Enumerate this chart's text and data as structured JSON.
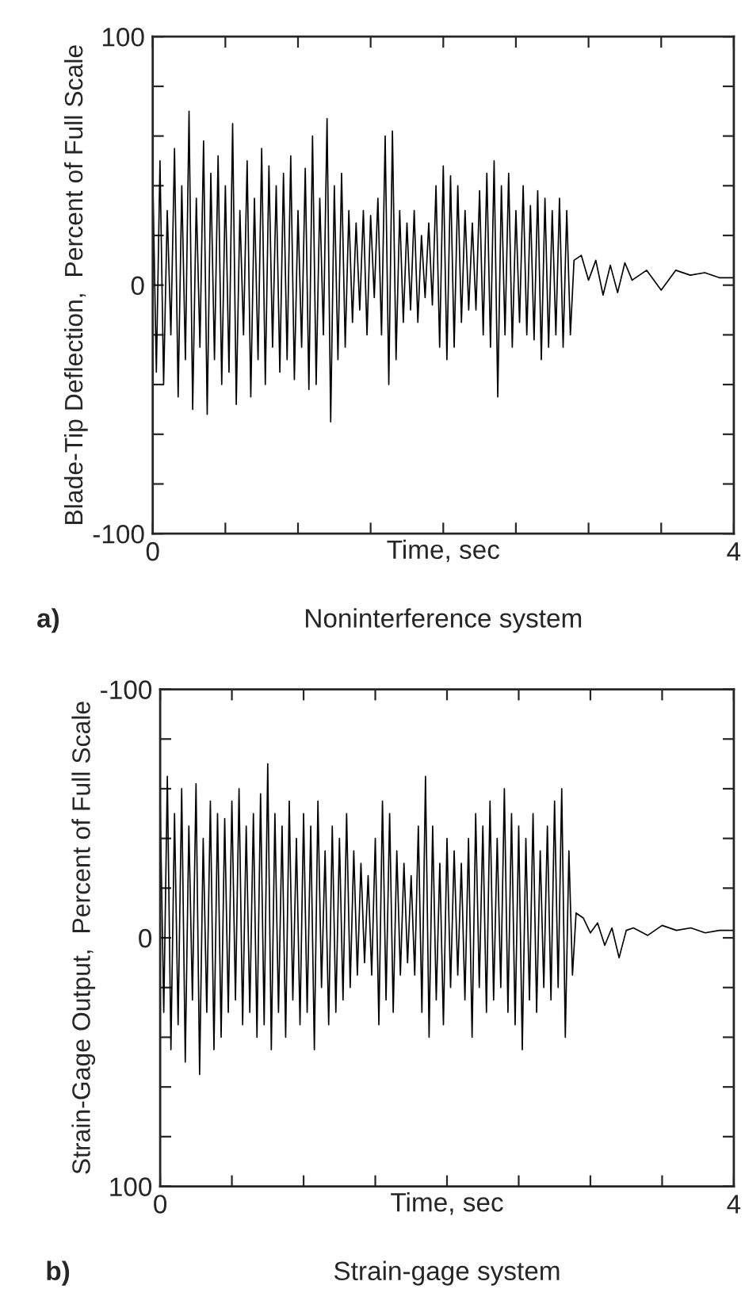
{
  "chart_data": [
    {
      "type": "line",
      "title": "Noninterference system",
      "xlabel": "Time, sec",
      "ylabel": "Blade-Tip Deflection,  Percent of Full Scale",
      "annotations": [
        "a)"
      ],
      "x": [
        0,
        0.025,
        0.05,
        0.075,
        0.1,
        0.125,
        0.15,
        0.175,
        0.2,
        0.225,
        0.25,
        0.275,
        0.3,
        0.325,
        0.35,
        0.375,
        0.4,
        0.425,
        0.45,
        0.475,
        0.5,
        0.525,
        0.55,
        0.575,
        0.6,
        0.625,
        0.65,
        0.675,
        0.7,
        0.725,
        0.75,
        0.775,
        0.8,
        0.825,
        0.85,
        0.875,
        0.9,
        0.925,
        0.95,
        0.975,
        1.0,
        1.025,
        1.05,
        1.075,
        1.1,
        1.125,
        1.15,
        1.175,
        1.2,
        1.225,
        1.25,
        1.275,
        1.3,
        1.325,
        1.35,
        1.375,
        1.4,
        1.425,
        1.45,
        1.475,
        1.5,
        1.525,
        1.55,
        1.575,
        1.6,
        1.625,
        1.65,
        1.675,
        1.7,
        1.725,
        1.75,
        1.775,
        1.8,
        1.825,
        1.85,
        1.875,
        1.9,
        1.925,
        1.95,
        1.975,
        2.0,
        2.025,
        2.05,
        2.075,
        2.1,
        2.125,
        2.15,
        2.175,
        2.2,
        2.225,
        2.25,
        2.275,
        2.3,
        2.325,
        2.35,
        2.375,
        2.4,
        2.425,
        2.45,
        2.475,
        2.5,
        2.525,
        2.55,
        2.575,
        2.6,
        2.625,
        2.65,
        2.675,
        2.7,
        2.725,
        2.75,
        2.775,
        2.8,
        2.825,
        2.85,
        2.875,
        2.9,
        2.95,
        3.0,
        3.05,
        3.1,
        3.15,
        3.2,
        3.25,
        3.3,
        3.4,
        3.5,
        3.6,
        3.7,
        3.8,
        3.9,
        4.0
      ],
      "series": [
        {
          "color": "#000000",
          "values": [
            45,
            -35,
            50,
            -40,
            30,
            -20,
            55,
            -45,
            40,
            -30,
            70,
            -50,
            35,
            -25,
            58,
            -52,
            45,
            -30,
            52,
            -40,
            40,
            -35,
            65,
            -48,
            30,
            -20,
            50,
            -45,
            35,
            -30,
            55,
            -40,
            48,
            -25,
            40,
            -35,
            45,
            -30,
            52,
            -38,
            30,
            -25,
            47,
            -42,
            60,
            -40,
            35,
            -20,
            67,
            -55,
            40,
            -30,
            45,
            -25,
            30,
            -15,
            25,
            -10,
            30,
            -20,
            28,
            -5,
            35,
            -20,
            60,
            -40,
            62,
            -30,
            30,
            -15,
            25,
            -10,
            30,
            -15,
            20,
            -5,
            25,
            -8,
            40,
            -25,
            48,
            -30,
            44,
            -25,
            40,
            -15,
            30,
            -10,
            25,
            -10,
            38,
            -20,
            45,
            -25,
            50,
            -45,
            40,
            -20,
            45,
            -25,
            30,
            -15,
            40,
            -20,
            32,
            -22,
            38,
            -30,
            35,
            -25,
            30,
            -20,
            35,
            -25,
            30,
            -20,
            10,
            12,
            2,
            10,
            -4,
            8,
            -3,
            9,
            2,
            6,
            -2,
            6,
            4,
            5,
            3,
            3
          ]
        }
      ],
      "xlim": [
        0,
        4
      ],
      "xticks": [
        0,
        {
          "value": 0.5,
          "label": null
        },
        {
          "value": 1,
          "label": null
        },
        {
          "value": 1.5,
          "label": null
        },
        {
          "value": 2,
          "label": null
        },
        {
          "value": 2.5,
          "label": null
        },
        {
          "value": 3,
          "label": null
        },
        {
          "value": 3.5,
          "label": null
        },
        4
      ],
      "ylim": [
        -100,
        100
      ],
      "yticks": [
        -100,
        {
          "value": -80,
          "label": null
        },
        {
          "value": -60,
          "label": null
        },
        {
          "value": -40,
          "label": null
        },
        {
          "value": -20,
          "label": null
        },
        0,
        {
          "value": 20,
          "label": null
        },
        {
          "value": 40,
          "label": null
        },
        {
          "value": 60,
          "label": null
        },
        {
          "value": 80,
          "label": null
        },
        100
      ]
    },
    {
      "type": "line",
      "title": "Strain-gage system",
      "xlabel": "Time, sec",
      "ylabel": "Strain-Gage Output,  Percent of Full Scale",
      "annotations": [
        "b)"
      ],
      "x": [
        0,
        0.025,
        0.05,
        0.075,
        0.1,
        0.125,
        0.15,
        0.175,
        0.2,
        0.225,
        0.25,
        0.275,
        0.3,
        0.325,
        0.35,
        0.375,
        0.4,
        0.425,
        0.45,
        0.475,
        0.5,
        0.525,
        0.55,
        0.575,
        0.6,
        0.625,
        0.65,
        0.675,
        0.7,
        0.725,
        0.75,
        0.775,
        0.8,
        0.825,
        0.85,
        0.875,
        0.9,
        0.925,
        0.95,
        0.975,
        1.0,
        1.025,
        1.05,
        1.075,
        1.1,
        1.125,
        1.15,
        1.175,
        1.2,
        1.225,
        1.25,
        1.275,
        1.3,
        1.325,
        1.35,
        1.375,
        1.4,
        1.425,
        1.45,
        1.475,
        1.5,
        1.525,
        1.55,
        1.575,
        1.6,
        1.625,
        1.65,
        1.675,
        1.7,
        1.725,
        1.75,
        1.775,
        1.8,
        1.825,
        1.85,
        1.875,
        1.9,
        1.925,
        1.95,
        1.975,
        2.0,
        2.025,
        2.05,
        2.075,
        2.1,
        2.125,
        2.15,
        2.175,
        2.2,
        2.225,
        2.25,
        2.275,
        2.3,
        2.325,
        2.35,
        2.375,
        2.4,
        2.425,
        2.45,
        2.475,
        2.5,
        2.525,
        2.55,
        2.575,
        2.6,
        2.625,
        2.65,
        2.675,
        2.7,
        2.725,
        2.75,
        2.775,
        2.8,
        2.825,
        2.85,
        2.875,
        2.9,
        2.95,
        3.0,
        3.05,
        3.1,
        3.15,
        3.2,
        3.25,
        3.3,
        3.4,
        3.5,
        3.6,
        3.7,
        3.8,
        3.9,
        4.0
      ],
      "series": [
        {
          "color": "#000000",
          "values": [
            -55,
            30,
            -65,
            45,
            -50,
            35,
            -60,
            50,
            -45,
            25,
            -62,
            55,
            -40,
            30,
            -55,
            45,
            -50,
            40,
            -48,
            30,
            -55,
            25,
            -60,
            35,
            -45,
            30,
            -50,
            40,
            -58,
            35,
            -70,
            45,
            -50,
            30,
            -45,
            40,
            -55,
            25,
            -40,
            35,
            -50,
            30,
            -45,
            45,
            -55,
            20,
            -35,
            35,
            -45,
            30,
            -40,
            25,
            -50,
            20,
            -35,
            15,
            -30,
            10,
            -25,
            15,
            -40,
            35,
            -55,
            25,
            -50,
            30,
            -35,
            15,
            -30,
            10,
            -25,
            15,
            -45,
            30,
            -65,
            40,
            -45,
            25,
            -30,
            35,
            -40,
            20,
            -35,
            15,
            -30,
            25,
            -40,
            40,
            -50,
            20,
            -45,
            30,
            -55,
            25,
            -40,
            20,
            -60,
            30,
            -50,
            35,
            -45,
            45,
            -40,
            25,
            -50,
            30,
            -35,
            20,
            -45,
            25,
            -55,
            20,
            -60,
            40,
            -35,
            15,
            -10,
            -8,
            -2,
            -6,
            3,
            -4,
            8,
            -3,
            -4,
            -1,
            -5,
            -3,
            -4,
            -2,
            -3,
            -3
          ]
        }
      ],
      "xlim": [
        0,
        4
      ],
      "xticks": [
        0,
        {
          "value": 0.5,
          "label": null
        },
        {
          "value": 1,
          "label": null
        },
        {
          "value": 1.5,
          "label": null
        },
        {
          "value": 2,
          "label": null
        },
        {
          "value": 2.5,
          "label": null
        },
        {
          "value": 3,
          "label": null
        },
        {
          "value": 3.5,
          "label": null
        },
        4
      ],
      "ylim": [
        100,
        -100
      ],
      "yticks": [
        -100,
        {
          "value": -80,
          "label": null
        },
        {
          "value": -60,
          "label": null
        },
        {
          "value": -40,
          "label": null
        },
        {
          "value": -20,
          "label": null
        },
        0,
        {
          "value": 20,
          "label": null
        },
        {
          "value": 40,
          "label": null
        },
        {
          "value": 60,
          "label": null
        },
        {
          "value": 80,
          "label": null
        },
        100
      ]
    }
  ]
}
